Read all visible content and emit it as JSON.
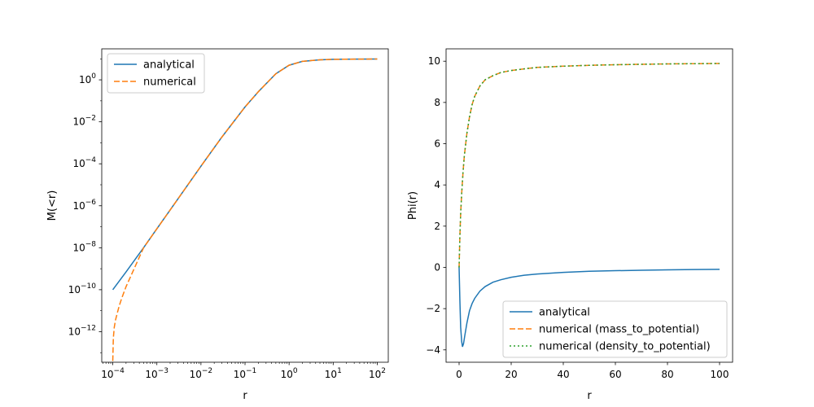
{
  "chart_data": [
    {
      "type": "line",
      "xscale": "log",
      "yscale": "log",
      "xlabel": "r",
      "ylabel": "M(<r)",
      "xlim": [
        5.62e-05,
        177.8
      ],
      "ylim": [
        3.5e-14,
        30
      ],
      "x_ticks": [
        {
          "value": 0.0001,
          "base": "10",
          "exp": "−4"
        },
        {
          "value": 0.001,
          "base": "10",
          "exp": "−3"
        },
        {
          "value": 0.01,
          "base": "10",
          "exp": "−2"
        },
        {
          "value": 0.1,
          "base": "10",
          "exp": "−1"
        },
        {
          "value": 1,
          "base": "10",
          "exp": "0"
        },
        {
          "value": 10,
          "base": "10",
          "exp": "1"
        },
        {
          "value": 100,
          "base": "10",
          "exp": "2"
        }
      ],
      "y_ticks": [
        {
          "value": 1e-12,
          "base": "10",
          "exp": "−12"
        },
        {
          "value": 1e-10,
          "base": "10",
          "exp": "−10"
        },
        {
          "value": 1e-08,
          "base": "10",
          "exp": "−8"
        },
        {
          "value": 1e-06,
          "base": "10",
          "exp": "−6"
        },
        {
          "value": 0.0001,
          "base": "10",
          "exp": "−4"
        },
        {
          "value": 0.01,
          "base": "10",
          "exp": "−2"
        },
        {
          "value": 1,
          "base": "10",
          "exp": "0"
        }
      ],
      "legend_position": "upper-left",
      "series": [
        {
          "name": "analytical",
          "color": "#1f77b4",
          "style": "solid",
          "x": [
            0.0001,
            0.0002,
            0.0005,
            0.001,
            0.003,
            0.01,
            0.03,
            0.1,
            0.2,
            0.5,
            1,
            2,
            5,
            10,
            30,
            100
          ],
          "y": [
            1e-10,
            7e-10,
            1e-08,
            8e-08,
            2.1e-06,
            7.7e-05,
            0.0019,
            0.051,
            0.27,
            1.95,
            4.98,
            7.6,
            9.0,
            9.45,
            9.7,
            9.8
          ]
        },
        {
          "name": "numerical",
          "color": "#ff7f0e",
          "style": "dashed",
          "x": [
            0.0001,
            0.000103,
            0.000108,
            0.000115,
            0.000125,
            0.00014,
            0.00016,
            0.0002,
            0.0005,
            0.001,
            0.003,
            0.01,
            0.03,
            0.1,
            0.2,
            0.5,
            1,
            2,
            5,
            10,
            30,
            100
          ],
          "y": [
            4e-14,
            5e-13,
            1.6e-12,
            3.5e-12,
            7e-12,
            1.7e-11,
            4e-11,
            1.4e-10,
            1e-08,
            8e-08,
            2.1e-06,
            7.7e-05,
            0.0019,
            0.051,
            0.27,
            1.95,
            4.98,
            7.6,
            9.0,
            9.45,
            9.7,
            9.8
          ]
        }
      ]
    },
    {
      "type": "line",
      "xscale": "linear",
      "yscale": "linear",
      "xlabel": "r",
      "ylabel": "Phi(r)",
      "xlim": [
        -5,
        105
      ],
      "ylim": [
        -4.6,
        10.6
      ],
      "x_ticks": [
        0,
        20,
        40,
        60,
        80,
        100
      ],
      "y_ticks": [
        -4,
        -2,
        0,
        2,
        4,
        6,
        8,
        10
      ],
      "legend_position": "lower-right",
      "series": [
        {
          "name": "analytical",
          "color": "#1f77b4",
          "style": "solid",
          "x": [
            0,
            0.3,
            0.6,
            1.0,
            1.3,
            1.7,
            2.2,
            3,
            4,
            5,
            6,
            8,
            10,
            13,
            16,
            20,
            25,
            30,
            40,
            50,
            60,
            70,
            80,
            90,
            100
          ],
          "y": [
            0,
            -1.6,
            -2.9,
            -3.6,
            -3.85,
            -3.7,
            -3.3,
            -2.7,
            -2.1,
            -1.75,
            -1.5,
            -1.15,
            -0.93,
            -0.72,
            -0.6,
            -0.48,
            -0.38,
            -0.32,
            -0.24,
            -0.19,
            -0.16,
            -0.14,
            -0.12,
            -0.105,
            -0.095
          ]
        },
        {
          "name": "numerical (mass_to_potential)",
          "color": "#ff7f0e",
          "style": "dashed",
          "x": [
            0,
            0.3,
            0.6,
            1.0,
            1.5,
            2,
            3,
            4,
            5,
            6,
            8,
            10,
            13,
            16,
            20,
            25,
            30,
            40,
            50,
            60,
            70,
            80,
            90,
            100
          ],
          "y": [
            0,
            1.5,
            2.6,
            3.6,
            4.6,
            5.4,
            6.5,
            7.3,
            7.9,
            8.3,
            8.8,
            9.1,
            9.3,
            9.45,
            9.55,
            9.63,
            9.7,
            9.76,
            9.8,
            9.83,
            9.85,
            9.87,
            9.88,
            9.89
          ]
        },
        {
          "name": "numerical (density_to_potential)",
          "color": "#2ca02c",
          "style": "dotted",
          "x": [
            0,
            0.3,
            0.6,
            1.0,
            1.5,
            2,
            3,
            4,
            5,
            6,
            8,
            10,
            13,
            16,
            20,
            25,
            30,
            40,
            50,
            60,
            70,
            80,
            90,
            100
          ],
          "y": [
            0,
            1.5,
            2.6,
            3.6,
            4.6,
            5.4,
            6.5,
            7.3,
            7.9,
            8.3,
            8.8,
            9.1,
            9.3,
            9.45,
            9.55,
            9.63,
            9.7,
            9.76,
            9.8,
            9.83,
            9.85,
            9.87,
            9.88,
            9.89
          ]
        }
      ]
    }
  ]
}
